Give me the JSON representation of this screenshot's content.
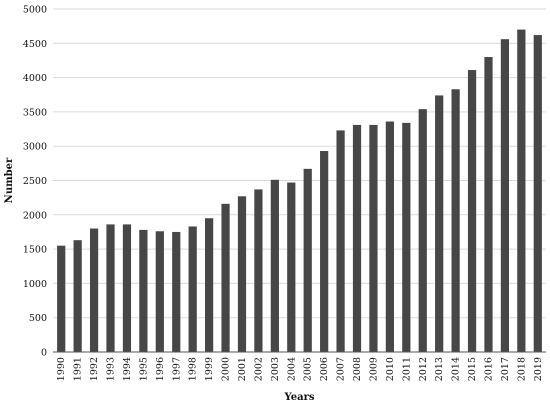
{
  "chart_data": {
    "type": "bar",
    "title": "",
    "xlabel": "Years",
    "ylabel": "Number",
    "ylim": [
      0,
      5000
    ],
    "yticks": [
      0,
      500,
      1000,
      1500,
      2000,
      2500,
      3000,
      3500,
      4000,
      4500,
      5000
    ],
    "grid": true,
    "legend": "none",
    "bar_color": "#474747",
    "categories": [
      "1990",
      "1991",
      "1992",
      "1993",
      "1994",
      "1995",
      "1996",
      "1997",
      "1998",
      "1999",
      "2000",
      "2001",
      "2002",
      "2003",
      "2004",
      "2005",
      "2006",
      "2007",
      "2008",
      "2009",
      "2010",
      "2011",
      "2012",
      "2013",
      "2014",
      "2015",
      "2016",
      "2017",
      "2018",
      "2019"
    ],
    "values": [
      1550,
      1630,
      1800,
      1860,
      1860,
      1780,
      1760,
      1750,
      1830,
      1950,
      2160,
      2270,
      2370,
      2510,
      2470,
      2670,
      2930,
      3230,
      3310,
      3310,
      3360,
      3340,
      3540,
      3740,
      3830,
      4110,
      4300,
      4560,
      4700,
      4620
    ]
  }
}
